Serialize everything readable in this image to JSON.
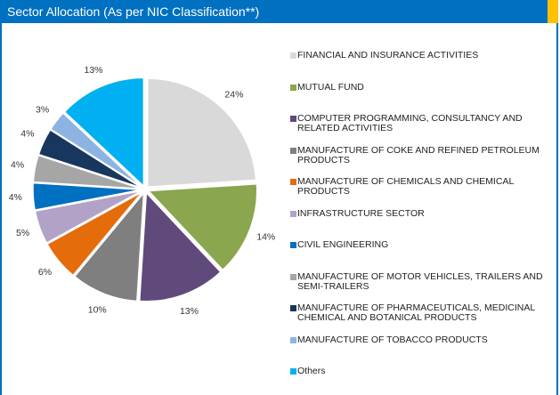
{
  "chart_data": {
    "type": "pie",
    "title": "Sector Allocation (As per NIC Classification**)",
    "categories": [
      "FINANCIAL AND INSURANCE ACTIVITIES",
      "MUTUAL FUND",
      "COMPUTER PROGRAMMING, CONSULTANCY AND RELATED ACTIVITIES",
      "MANUFACTURE OF COKE AND REFINED PETROLEUM PRODUCTS",
      "MANUFACTURE OF CHEMICALS AND CHEMICAL PRODUCTS",
      "INFRASTRUCTURE SECTOR",
      "CIVIL ENGINEERING",
      "MANUFACTURE OF MOTOR VEHICLES, TRAILERS AND SEMI-TRAILERS",
      "MANUFACTURE OF PHARMACEUTICALS, MEDICINAL CHEMICAL AND BOTANICAL PRODUCTS",
      "MANUFACTURE OF TOBACCO PRODUCTS",
      "Others"
    ],
    "values": [
      24,
      14,
      13,
      10,
      6,
      5,
      4,
      4,
      4,
      3,
      13
    ],
    "value_labels": [
      "24%",
      "14%",
      "13%",
      "10%",
      "6%",
      "5%",
      "4%",
      "4%",
      "4%",
      "3%",
      "13%"
    ],
    "colors": [
      "#d9d9d9",
      "#8aa64e",
      "#604a7b",
      "#7f7f7f",
      "#e46c0a",
      "#b3a2c7",
      "#0070c0",
      "#a6a6a6",
      "#17375e",
      "#8db3e2",
      "#00b0f0"
    ],
    "legend": "right"
  }
}
